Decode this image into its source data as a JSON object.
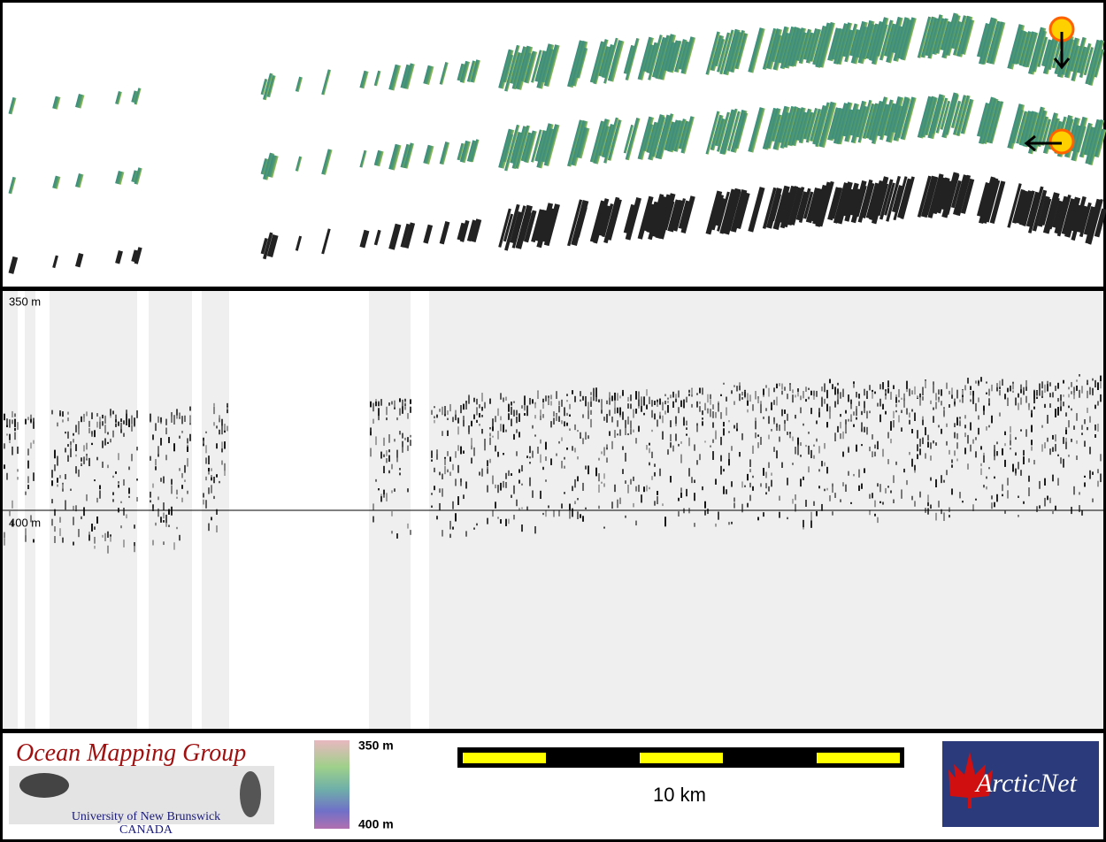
{
  "profile": {
    "top_label": "350 m",
    "bottom_label": "400 m"
  },
  "logo_omg": {
    "title": "Ocean Mapping Group",
    "university": "University of New Brunswick",
    "country": "CANADA"
  },
  "colorbar": {
    "top_label": "350 m",
    "bottom_label": "400 m"
  },
  "scale_bar": {
    "label": "10 km"
  },
  "logo_arcticnet": {
    "name": "ArcticNet"
  }
}
